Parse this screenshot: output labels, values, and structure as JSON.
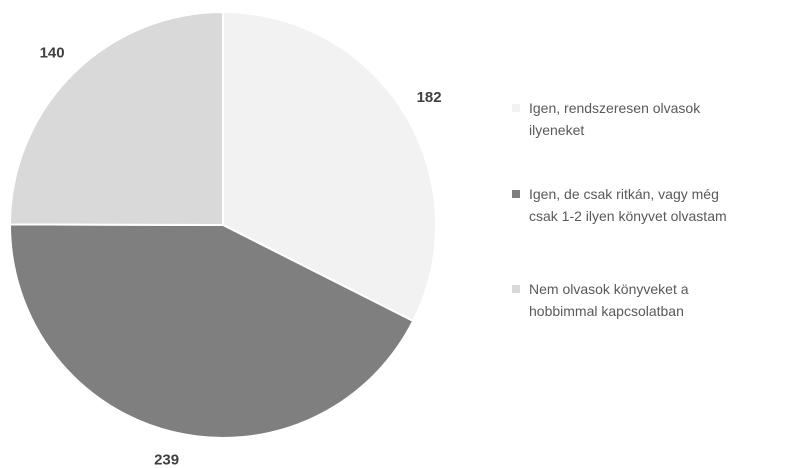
{
  "chart_data": {
    "type": "pie",
    "categories": [
      "Igen, rendszeresen olvasok ilyeneket",
      "Igen, de csak ritkán, vagy még csak 1-2 ilyen könyvet olvastam",
      "Nem olvasok könyveket a hobbimmal kapcsolatban"
    ],
    "values": [
      182,
      239,
      140
    ],
    "colors": [
      "#f2f2f2",
      "#7f7f7f",
      "#d9d9d9"
    ],
    "legend": "right"
  }
}
